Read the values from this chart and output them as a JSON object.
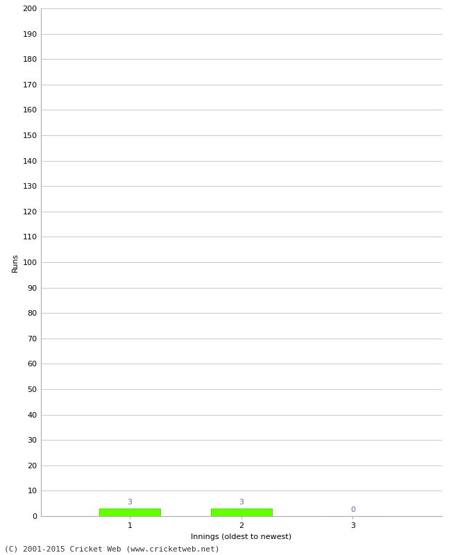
{
  "xlabel": "Innings (oldest to newest)",
  "ylabel": "Runs",
  "categories": [
    1,
    2,
    3
  ],
  "values": [
    3,
    3,
    0
  ],
  "bar_color": "#66ff00",
  "bar_edge_color": "#55dd00",
  "ylim": [
    0,
    200
  ],
  "yticks": [
    0,
    10,
    20,
    30,
    40,
    50,
    60,
    70,
    80,
    90,
    100,
    110,
    120,
    130,
    140,
    150,
    160,
    170,
    180,
    190,
    200
  ],
  "xticks": [
    1,
    2,
    3
  ],
  "label_color": "#6666cc",
  "footer": "(C) 2001-2015 Cricket Web (www.cricketweb.net)",
  "background_color": "#ffffff",
  "grid_color": "#cccccc",
  "label_fontsize": 8,
  "axis_tick_fontsize": 8,
  "axis_label_fontsize": 8,
  "footer_fontsize": 8,
  "bar_width": 0.55
}
